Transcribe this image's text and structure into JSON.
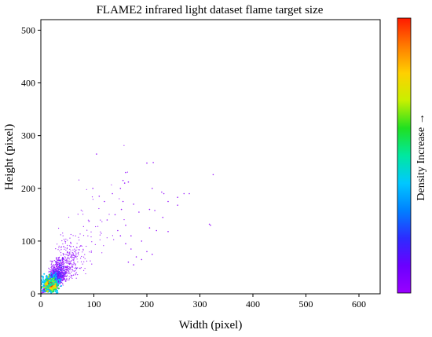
{
  "chart_data": {
    "type": "scatter",
    "title": "FLAME2 infrared light dataset flame target size",
    "xlabel": "Width (pixel)",
    "ylabel": "Height (pixel)",
    "xlim": [
      0,
      640
    ],
    "ylim": [
      0,
      520
    ],
    "xticks": [
      0,
      100,
      200,
      300,
      400,
      500,
      600
    ],
    "yticks": [
      0,
      100,
      200,
      300,
      400,
      500
    ],
    "grid": false,
    "colorbar": {
      "label": "Density Increase →",
      "colors": [
        "#9900ff",
        "#6a00ff",
        "#2c2cff",
        "#0080ff",
        "#00c8ff",
        "#00e8a0",
        "#20e020",
        "#c8f000",
        "#ffd000",
        "#ff7a00",
        "#ff1a00"
      ]
    },
    "density_core": {
      "center": [
        18,
        18
      ],
      "points": [
        [
          10,
          10
        ],
        [
          12,
          14
        ],
        [
          14,
          12
        ],
        [
          15,
          17
        ],
        [
          17,
          15
        ],
        [
          18,
          19
        ],
        [
          20,
          17
        ],
        [
          22,
          21
        ],
        [
          16,
          22
        ],
        [
          24,
          18
        ],
        [
          19,
          24
        ],
        [
          25,
          25
        ],
        [
          28,
          22
        ],
        [
          21,
          27
        ]
      ]
    },
    "sparse_points": [
      [
        105,
        265
      ],
      [
        160,
        230
      ],
      [
        155,
        215
      ],
      [
        158,
        210
      ],
      [
        165,
        212
      ],
      [
        150,
        200
      ],
      [
        200,
        248
      ],
      [
        212,
        249
      ],
      [
        325,
        226
      ],
      [
        210,
        200
      ],
      [
        228,
        193
      ],
      [
        232,
        190
      ],
      [
        270,
        190
      ],
      [
        280,
        190
      ],
      [
        258,
        183
      ],
      [
        155,
        175
      ],
      [
        152,
        160
      ],
      [
        175,
        170
      ],
      [
        185,
        155
      ],
      [
        205,
        160
      ],
      [
        215,
        158
      ],
      [
        240,
        175
      ],
      [
        258,
        168
      ],
      [
        318,
        132
      ],
      [
        320,
        130
      ],
      [
        230,
        145
      ],
      [
        205,
        125
      ],
      [
        218,
        120
      ],
      [
        240,
        118
      ],
      [
        160,
        130
      ],
      [
        170,
        110
      ],
      [
        190,
        100
      ],
      [
        200,
        80
      ],
      [
        210,
        75
      ],
      [
        125,
        140
      ],
      [
        120,
        175
      ],
      [
        110,
        185
      ],
      [
        98,
        200
      ],
      [
        135,
        190
      ],
      [
        140,
        150
      ],
      [
        145,
        120
      ],
      [
        150,
        110
      ],
      [
        160,
        95
      ],
      [
        170,
        85
      ],
      [
        180,
        70
      ],
      [
        165,
        60
      ],
      [
        175,
        55
      ],
      [
        190,
        65
      ]
    ]
  }
}
